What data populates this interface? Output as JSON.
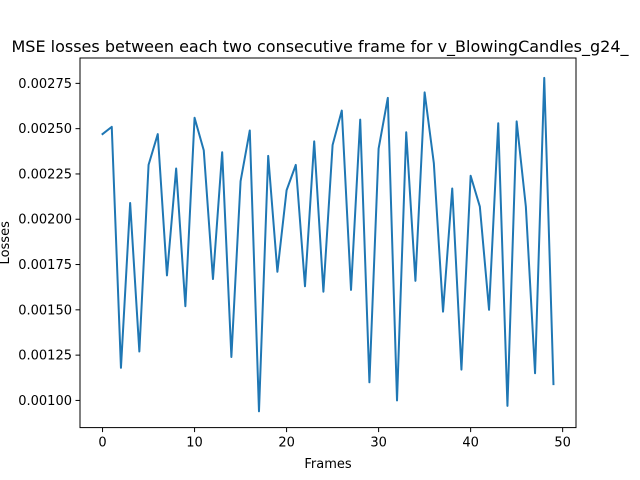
{
  "chart_data": {
    "type": "line",
    "title": "MSE losses between each two consecutive frame for v_BlowingCandles_g24_",
    "xlabel": "Frames",
    "ylabel": "Losses",
    "xlim": [
      -2.45,
      51.45
    ],
    "ylim": [
      0.00085,
      0.00289
    ],
    "xticks": [
      0,
      10,
      20,
      30,
      40,
      50
    ],
    "xtick_labels": [
      "0",
      "10",
      "20",
      "30",
      "40",
      "50"
    ],
    "yticks": [
      0.001,
      0.00125,
      0.0015,
      0.00175,
      0.002,
      0.00225,
      0.0025,
      0.00275
    ],
    "ytick_labels": [
      "0.00100",
      "0.00125",
      "0.00150",
      "0.00175",
      "0.00200",
      "0.00225",
      "0.00250",
      "0.00275"
    ],
    "grid": false,
    "series": [
      {
        "color": "#1f77b4",
        "x": [
          0,
          1,
          2,
          3,
          4,
          5,
          6,
          7,
          8,
          9,
          10,
          11,
          12,
          13,
          14,
          15,
          16,
          17,
          18,
          19,
          20,
          21,
          22,
          23,
          24,
          25,
          26,
          27,
          28,
          29,
          30,
          31,
          32,
          33,
          34,
          35,
          36,
          37,
          38,
          39,
          40,
          41,
          42,
          43,
          44,
          45,
          46,
          47,
          48,
          49
        ],
        "values": [
          0.00247,
          0.00251,
          0.00118,
          0.00209,
          0.00127,
          0.0023,
          0.00247,
          0.00169,
          0.00228,
          0.00152,
          0.00256,
          0.00238,
          0.00167,
          0.00237,
          0.00124,
          0.00221,
          0.00249,
          0.00094,
          0.00235,
          0.00171,
          0.00216,
          0.0023,
          0.00163,
          0.00243,
          0.0016,
          0.00241,
          0.0026,
          0.00161,
          0.00255,
          0.0011,
          0.00239,
          0.00267,
          0.001,
          0.00248,
          0.00166,
          0.0027,
          0.00231,
          0.00149,
          0.00217,
          0.00117,
          0.00224,
          0.00207,
          0.0015,
          0.00253,
          0.00097,
          0.00254,
          0.00207,
          0.00115,
          0.00278,
          0.00109
        ]
      }
    ]
  }
}
